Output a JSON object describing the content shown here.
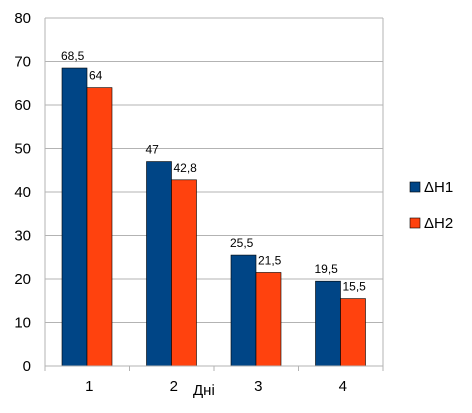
{
  "chart_data": {
    "type": "bar",
    "categories": [
      "1",
      "2",
      "3",
      "4"
    ],
    "series": [
      {
        "name": "ΔH1",
        "color": "#004586",
        "values": [
          68.5,
          47,
          25.5,
          19.5
        ],
        "labels": [
          "68,5",
          "47",
          "25,5",
          "19,5"
        ]
      },
      {
        "name": "ΔH2",
        "color": "#FF420E",
        "values": [
          64,
          42.8,
          21.5,
          15.5
        ],
        "labels": [
          "64",
          "42,8",
          "21,5",
          "15,5"
        ]
      }
    ],
    "xlabel": "Дні",
    "ylabel": "",
    "title": "",
    "ylim": [
      0,
      80
    ],
    "yticks": [
      0,
      10,
      20,
      30,
      40,
      50,
      60,
      70,
      80
    ],
    "grid": true,
    "legend": "right"
  }
}
